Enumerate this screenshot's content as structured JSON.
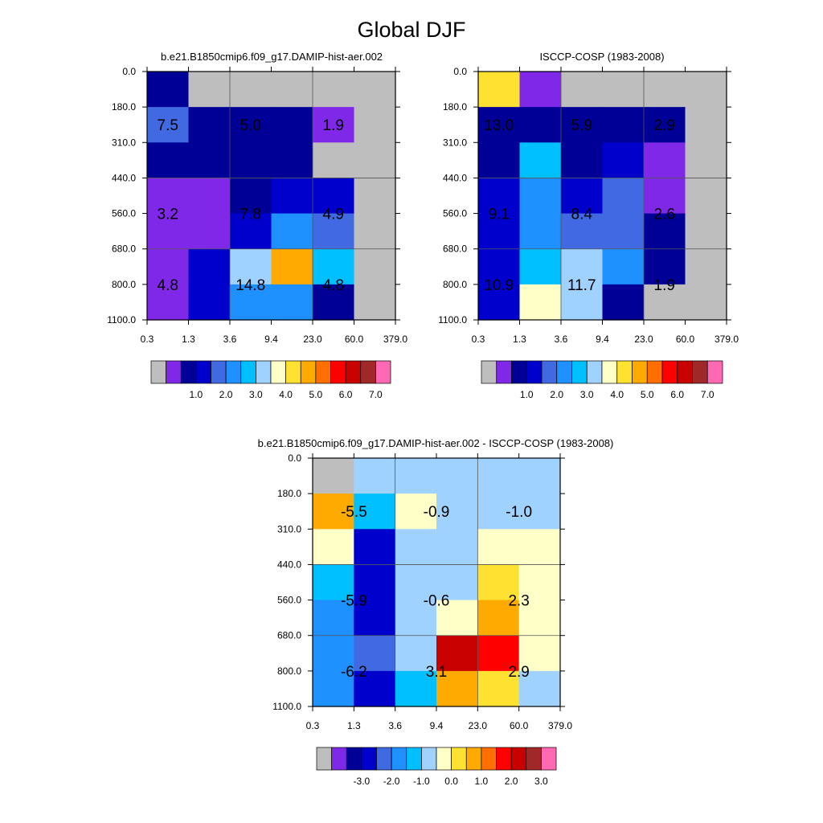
{
  "title": "Global DJF",
  "colors": {
    "missing": "#bebebe",
    "palette": [
      "#bebebe",
      "#8028e8",
      "#000096",
      "#0000cd",
      "#4169e1",
      "#1e90ff",
      "#00bfff",
      "#a0d2ff",
      "#ffffc8",
      "#ffe132",
      "#ffaa00",
      "#ff6e00",
      "#ff0000",
      "#c80000",
      "#a02828",
      "#ff69b4"
    ]
  },
  "chart_data": [
    {
      "type": "heatmap",
      "title": "b.e21.B1850cmip6.f09_g17.DAMIP-hist-aer.002",
      "x_tick_labels": [
        "0.3",
        "1.3",
        "3.6",
        "9.4",
        "23.0",
        "60.0",
        "379.0"
      ],
      "y_tick_labels": [
        "0.0",
        "180.0",
        "310.0",
        "440.0",
        "560.0",
        "680.0",
        "800.0",
        "1100.0"
      ],
      "colorbar_labels": [
        "1.0",
        "2.0",
        "3.0",
        "4.0",
        "5.0",
        "6.0",
        "7.0"
      ],
      "cell_palette_index": [
        [
          2,
          0,
          0,
          0,
          0,
          0
        ],
        [
          4,
          2,
          2,
          2,
          1,
          0
        ],
        [
          2,
          2,
          2,
          2,
          0,
          0
        ],
        [
          1,
          1,
          2,
          3,
          3,
          0
        ],
        [
          1,
          1,
          3,
          5,
          4,
          0
        ],
        [
          1,
          3,
          7,
          10,
          6,
          0
        ],
        [
          1,
          3,
          5,
          5,
          2,
          0
        ]
      ],
      "annotations": [
        {
          "text": "7.5",
          "col": 0.5,
          "row": 1.5
        },
        {
          "text": "5.0",
          "col": 2.5,
          "row": 1.5
        },
        {
          "text": "1.9",
          "col": 4.5,
          "row": 1.5
        },
        {
          "text": "3.2",
          "col": 0.5,
          "row": 4
        },
        {
          "text": "7.8",
          "col": 2.5,
          "row": 4
        },
        {
          "text": "4.9",
          "col": 4.5,
          "row": 4
        },
        {
          "text": "4.8",
          "col": 0.5,
          "row": 6
        },
        {
          "text": "14.8",
          "col": 2.5,
          "row": 6
        },
        {
          "text": "4.8",
          "col": 4.5,
          "row": 6
        }
      ]
    },
    {
      "type": "heatmap",
      "title": "ISCCP-COSP (1983-2008)",
      "x_tick_labels": [
        "0.3",
        "1.3",
        "3.6",
        "9.4",
        "23.0",
        "60.0",
        "379.0"
      ],
      "y_tick_labels": [
        "0.0",
        "180.0",
        "310.0",
        "440.0",
        "560.0",
        "680.0",
        "800.0",
        "1100.0"
      ],
      "colorbar_labels": [
        "1.0",
        "2.0",
        "3.0",
        "4.0",
        "5.0",
        "6.0",
        "7.0"
      ],
      "cell_palette_index": [
        [
          9,
          1,
          0,
          0,
          0,
          0
        ],
        [
          2,
          2,
          2,
          2,
          2,
          0
        ],
        [
          2,
          6,
          2,
          3,
          1,
          0
        ],
        [
          3,
          5,
          3,
          4,
          1,
          0
        ],
        [
          3,
          5,
          4,
          4,
          2,
          0
        ],
        [
          3,
          6,
          7,
          5,
          2,
          0
        ],
        [
          3,
          8,
          7,
          2,
          0,
          0
        ]
      ],
      "annotations": [
        {
          "text": "13.0",
          "col": 0.5,
          "row": 1.5
        },
        {
          "text": "5.9",
          "col": 2.5,
          "row": 1.5
        },
        {
          "text": "2.9",
          "col": 4.5,
          "row": 1.5
        },
        {
          "text": "9.1",
          "col": 0.5,
          "row": 4
        },
        {
          "text": "8.4",
          "col": 2.5,
          "row": 4
        },
        {
          "text": "2.6",
          "col": 4.5,
          "row": 4
        },
        {
          "text": "10.9",
          "col": 0.5,
          "row": 6
        },
        {
          "text": "11.7",
          "col": 2.5,
          "row": 6
        },
        {
          "text": "1.9",
          "col": 4.5,
          "row": 6
        }
      ]
    },
    {
      "type": "heatmap",
      "title": "b.e21.B1850cmip6.f09_g17.DAMIP-hist-aer.002 - ISCCP-COSP (1983-2008)",
      "x_tick_labels": [
        "0.3",
        "1.3",
        "3.6",
        "9.4",
        "23.0",
        "60.0",
        "379.0"
      ],
      "y_tick_labels": [
        "0.0",
        "180.0",
        "310.0",
        "440.0",
        "560.0",
        "680.0",
        "800.0",
        "1100.0"
      ],
      "colorbar_labels": [
        "-3.0",
        "-2.0",
        "-1.0",
        "0.0",
        "1.0",
        "2.0",
        "3.0"
      ],
      "cell_palette_index": [
        [
          0,
          7,
          7,
          7,
          7,
          7
        ],
        [
          10,
          6,
          8,
          7,
          7,
          7
        ],
        [
          8,
          3,
          7,
          7,
          8,
          8
        ],
        [
          6,
          3,
          7,
          7,
          9,
          8
        ],
        [
          5,
          3,
          7,
          8,
          10,
          8
        ],
        [
          5,
          4,
          7,
          13,
          12,
          8
        ],
        [
          5,
          3,
          6,
          10,
          9,
          7
        ]
      ],
      "annotations": [
        {
          "text": "-5.5",
          "col": 1,
          "row": 1.5
        },
        {
          "text": "-0.9",
          "col": 3,
          "row": 1.5
        },
        {
          "text": "-1.0",
          "col": 5,
          "row": 1.5
        },
        {
          "text": "-5.9",
          "col": 1,
          "row": 4
        },
        {
          "text": "-0.6",
          "col": 3,
          "row": 4
        },
        {
          "text": "2.3",
          "col": 5,
          "row": 4
        },
        {
          "text": "-6.2",
          "col": 1,
          "row": 6
        },
        {
          "text": "3.1",
          "col": 3,
          "row": 6
        },
        {
          "text": "2.9",
          "col": 5,
          "row": 6
        }
      ]
    }
  ]
}
